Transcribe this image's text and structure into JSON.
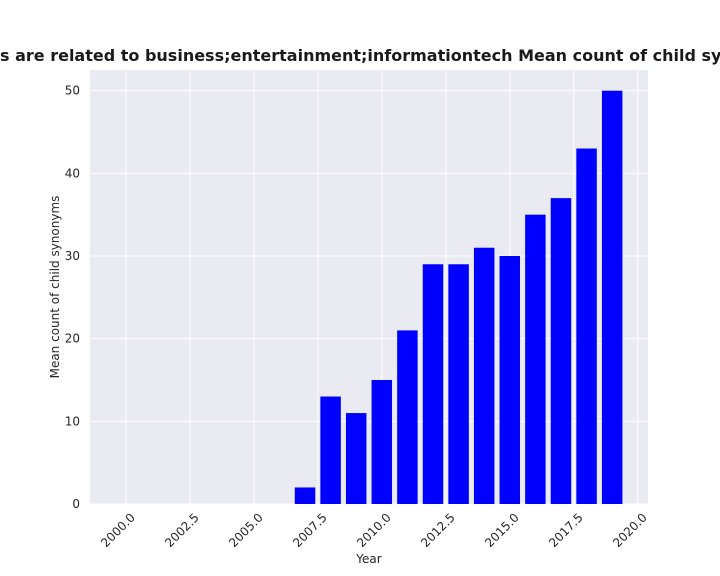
{
  "chart_data": {
    "type": "bar",
    "title": "Organizations that are related to business;entertainment;informationtech Mean count of child synonyms in private companies",
    "visible_title": "s are related to business;entertainment;informationtech Mean count of child synonyms in priva",
    "xlabel": "Year",
    "ylabel": "Mean count of child synonyms",
    "x": [
      2007,
      2008,
      2009,
      2010,
      2011,
      2012,
      2013,
      2014,
      2015,
      2016,
      2017,
      2018,
      2019
    ],
    "values": [
      2,
      13,
      11,
      15,
      21,
      29,
      29,
      31,
      30,
      35,
      37,
      43,
      50
    ],
    "xlim": [
      1998.6,
      2020.4
    ],
    "ylim": [
      0,
      52.5
    ],
    "xticks": [
      2000.0,
      2002.5,
      2005.0,
      2007.5,
      2010.0,
      2012.5,
      2015.0,
      2017.5,
      2020.0
    ],
    "xtick_labels": [
      "2000.0",
      "2002.5",
      "2005.0",
      "2007.5",
      "2010.0",
      "2012.5",
      "2015.0",
      "2017.5",
      "2020.0"
    ],
    "yticks": [
      0,
      10,
      20,
      30,
      40,
      50
    ],
    "ytick_labels": [
      "0",
      "10",
      "20",
      "30",
      "40",
      "50"
    ],
    "bar_color": "#0000ff",
    "background_color": "#eaeaf2",
    "grid_color": "#ffffff",
    "grid": true
  }
}
